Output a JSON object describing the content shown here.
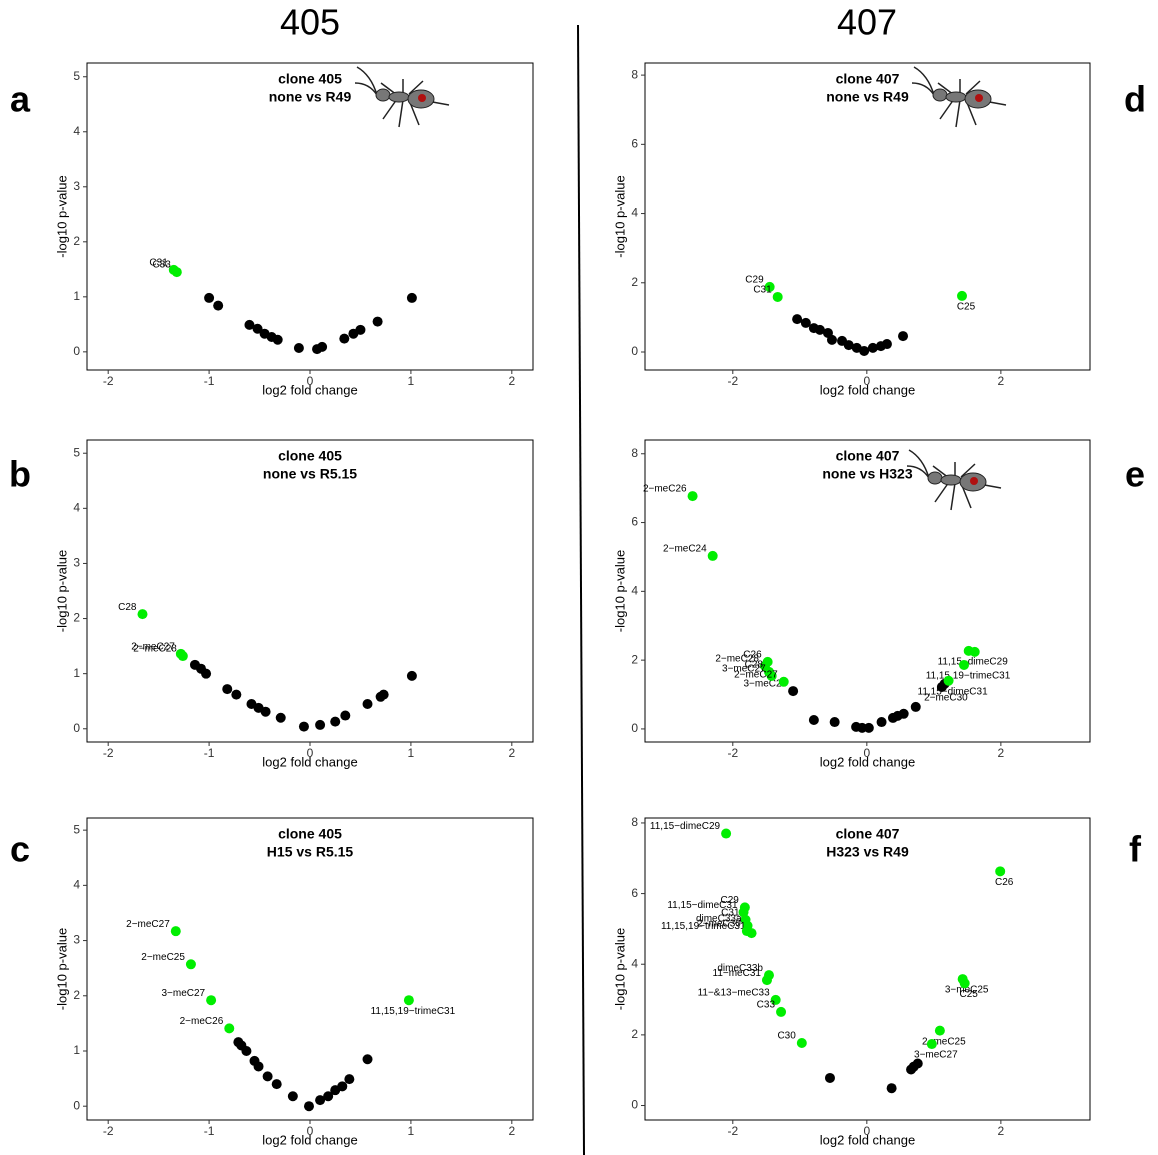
{
  "columns": [
    "405",
    "407"
  ],
  "chart_data": [
    {
      "type": "scatter",
      "panel": "a",
      "title": "clone 405",
      "subtitle": "none vs R49",
      "xlabel": "log2 fold change",
      "ylabel": "-log10  p-value",
      "xlim": [
        -2.21,
        2.21
      ],
      "ylim": [
        -0.33,
        5.25
      ],
      "xticks": [
        -2,
        -1,
        0,
        1,
        2
      ],
      "yticks": [
        0,
        1,
        2,
        3,
        4,
        5
      ],
      "series": [
        {
          "color": "#000000",
          "x": [
            -1.0,
            -0.91,
            -0.6,
            -0.52,
            -0.45,
            -0.38,
            -0.32,
            -0.11,
            0.07,
            0.12,
            0.34,
            0.43,
            0.5,
            0.67,
            1.01
          ],
          "y": [
            0.98,
            0.84,
            0.49,
            0.42,
            0.33,
            0.27,
            0.22,
            0.07,
            0.05,
            0.09,
            0.24,
            0.33,
            0.4,
            0.55,
            0.98
          ]
        },
        {
          "color": "#00ee00",
          "x": [
            -1.35,
            -1.32
          ],
          "y": [
            1.49,
            1.45
          ],
          "labels": [
            "C31",
            "C33"
          ]
        }
      ]
    },
    {
      "type": "scatter",
      "panel": "b",
      "title": "clone 405",
      "subtitle": "none vs R5.15",
      "xlabel": "log2 fold change",
      "ylabel": "-log10  p-value",
      "xlim": [
        -2.21,
        2.21
      ],
      "ylim": [
        -0.24,
        5.24
      ],
      "xticks": [
        -2,
        -1,
        0,
        1,
        2
      ],
      "yticks": [
        0,
        1,
        2,
        3,
        4,
        5
      ],
      "series": [
        {
          "color": "#000000",
          "x": [
            -1.14,
            -1.08,
            -1.03,
            -0.82,
            -0.73,
            -0.58,
            -0.51,
            -0.44,
            -0.29,
            -0.06,
            0.1,
            0.25,
            0.35,
            0.57,
            0.7,
            0.73,
            1.01
          ],
          "y": [
            1.16,
            1.09,
            1.0,
            0.72,
            0.62,
            0.45,
            0.38,
            0.31,
            0.2,
            0.04,
            0.07,
            0.13,
            0.24,
            0.45,
            0.58,
            0.62,
            0.96
          ]
        },
        {
          "color": "#00ee00",
          "x": [
            -1.66,
            -1.28,
            -1.26
          ],
          "y": [
            2.08,
            1.36,
            1.32
          ],
          "labels": [
            "C28",
            "2−meC27",
            "2−meC28"
          ]
        }
      ]
    },
    {
      "type": "scatter",
      "panel": "c",
      "title": "clone 405",
      "subtitle": "H15 vs R5.15",
      "xlabel": "log2 fold change",
      "ylabel": "-log10  p-value",
      "xlim": [
        -2.21,
        2.21
      ],
      "ylim": [
        -0.25,
        5.22
      ],
      "xticks": [
        -2,
        -1,
        0,
        1,
        2
      ],
      "yticks": [
        0,
        1,
        2,
        3,
        4,
        5
      ],
      "series": [
        {
          "color": "#000000",
          "x": [
            -0.71,
            -0.68,
            -0.63,
            -0.55,
            -0.51,
            -0.42,
            -0.33,
            -0.17,
            -0.01,
            0.1,
            0.18,
            0.25,
            0.32,
            0.39,
            0.57
          ],
          "y": [
            1.16,
            1.1,
            1.0,
            0.82,
            0.72,
            0.54,
            0.4,
            0.18,
            0.0,
            0.11,
            0.18,
            0.29,
            0.36,
            0.49,
            0.85
          ]
        },
        {
          "color": "#00ee00",
          "x": [
            -1.33,
            -1.18,
            -0.98,
            -0.8,
            0.98
          ],
          "y": [
            3.17,
            2.57,
            1.92,
            1.41,
            1.92
          ],
          "labels": [
            "2−meC27",
            "2−meC25",
            "3−meC27",
            "2−meC26",
            "11,15,19−trimeC31"
          ]
        }
      ]
    },
    {
      "type": "scatter",
      "panel": "d",
      "title": "clone 407",
      "subtitle": "none vs R49",
      "xlabel": "log2 fold change",
      "ylabel": "-log10  p-value",
      "xlim": [
        -3.31,
        3.33
      ],
      "ylim": [
        -0.52,
        8.35
      ],
      "xticks": [
        -2,
        0,
        2
      ],
      "yticks": [
        0,
        2,
        4,
        6,
        8
      ],
      "series": [
        {
          "color": "#000000",
          "x": [
            -1.04,
            -0.91,
            -0.79,
            -0.7,
            -0.58,
            -0.52,
            -0.37,
            -0.27,
            -0.15,
            -0.04,
            0.09,
            0.21,
            0.3,
            0.54
          ],
          "y": [
            0.95,
            0.84,
            0.69,
            0.64,
            0.55,
            0.35,
            0.32,
            0.2,
            0.12,
            0.03,
            0.12,
            0.17,
            0.23,
            0.46
          ]
        },
        {
          "color": "#00ee00",
          "x": [
            -1.45,
            -1.33,
            1.42
          ],
          "y": [
            1.88,
            1.59,
            1.62
          ],
          "labels": [
            "C29",
            "C31",
            "C25"
          ]
        }
      ]
    },
    {
      "type": "scatter",
      "panel": "e",
      "title": "clone 407",
      "subtitle": "none vs H323",
      "xlabel": "log2 fold change",
      "ylabel": "-log10  p-value",
      "xlim": [
        -3.31,
        3.33
      ],
      "ylim": [
        -0.38,
        8.4
      ],
      "xticks": [
        -2,
        0,
        2
      ],
      "yticks": [
        0,
        2,
        4,
        6,
        8
      ],
      "series": [
        {
          "color": "#000000",
          "x": [
            -1.1,
            1.12,
            1.16,
            -0.79,
            -0.48,
            -0.16,
            -0.07,
            0.03,
            0.22,
            0.39,
            0.46,
            0.55,
            0.73
          ],
          "y": [
            1.1,
            1.22,
            1.31,
            0.26,
            0.2,
            0.06,
            0.03,
            0.03,
            0.2,
            0.32,
            0.38,
            0.44,
            0.64
          ],
          "labels": [
            "3−meC28",
            "2−meC30",
            null,
            null,
            null,
            null,
            null,
            null,
            null,
            null,
            null,
            null,
            null
          ]
        },
        {
          "color": "#00ee00",
          "x": [
            -2.6,
            -2.3,
            -1.48,
            -1.52,
            -1.46,
            -1.42,
            -1.24,
            1.52,
            1.61,
            1.45,
            1.22
          ],
          "y": [
            6.77,
            5.03,
            1.95,
            1.83,
            1.66,
            1.54,
            1.37,
            2.27,
            2.24,
            1.86,
            1.4
          ],
          "labels": [
            "2−meC26",
            "2−meC24",
            "C26",
            "2−meC28",
            "C28",
            "3−meC27",
            "2−meC27",
            "11,15−dimeC29",
            null,
            "11,15,19−trimeC31",
            "11,15−dimeC31"
          ]
        }
      ]
    },
    {
      "type": "scatter",
      "panel": "f",
      "title": "clone 407",
      "subtitle": "H323 vs R49",
      "xlabel": "log2 fold change",
      "ylabel": "-log10  p-value",
      "xlim": [
        -3.31,
        3.33
      ],
      "ylim": [
        -0.41,
        8.14
      ],
      "xticks": [
        -2,
        0,
        2
      ],
      "yticks": [
        0,
        2,
        4,
        6,
        8
      ],
      "series": [
        {
          "color": "#000000",
          "x": [
            -0.55,
            0.37,
            0.66,
            0.7,
            0.76
          ],
          "y": [
            0.78,
            0.49,
            1.02,
            1.1,
            1.19
          ]
        },
        {
          "color": "#00ee00",
          "x": [
            -2.1,
            1.99,
            -1.82,
            -1.84,
            -1.81,
            -1.78,
            -1.72,
            -1.79,
            -1.46,
            -1.49,
            1.43,
            1.46,
            -1.36,
            -1.28,
            1.09,
            -0.97,
            0.97
          ],
          "y": [
            7.7,
            6.63,
            5.61,
            5.47,
            5.26,
            5.09,
            4.88,
            4.94,
            3.69,
            3.55,
            3.58,
            3.46,
            2.99,
            2.65,
            2.12,
            1.77,
            1.74
          ],
          "labels": [
            "11,15−dimeC29",
            "C26",
            "C29",
            "11,15−dimeC31",
            "C31",
            "dimeC33a",
            "11,15,19−trimeC31",
            "2−meC30",
            "dimeC33b",
            "11−meC31",
            "3−meC25",
            "C25",
            "11−&13−meC33",
            "C33",
            "2−meC25",
            "C30",
            "3−meC27"
          ]
        }
      ]
    }
  ]
}
